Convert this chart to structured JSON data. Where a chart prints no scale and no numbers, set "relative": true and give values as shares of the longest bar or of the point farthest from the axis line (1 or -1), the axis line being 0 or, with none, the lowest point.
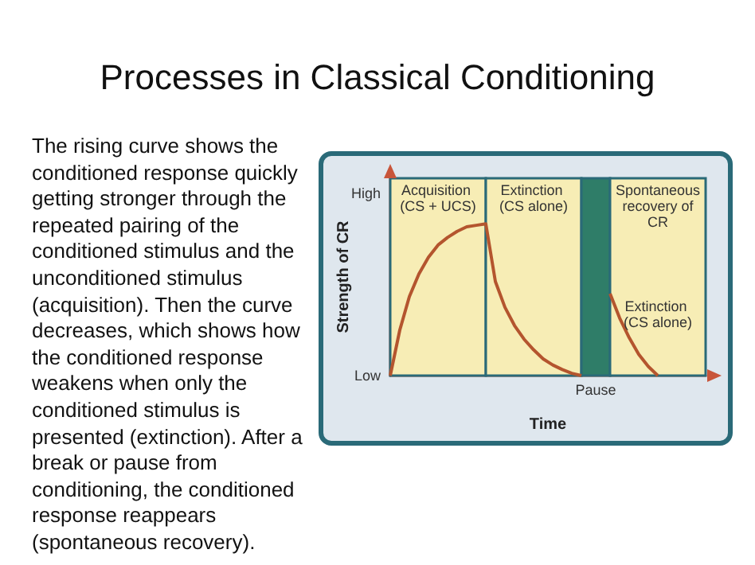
{
  "chart_data": {
    "type": "line",
    "title": "Processes in Classical Conditioning",
    "xlabel": "Time",
    "ylabel": "Strength of CR",
    "relative": true,
    "marker": "none",
    "categories": [
      null,
      null,
      null,
      null,
      null,
      null,
      null,
      null,
      null,
      null,
      null,
      null,
      null,
      null,
      null,
      null,
      null,
      null,
      null,
      null,
      null,
      null,
      null,
      null,
      null,
      null,
      null,
      null,
      null,
      null,
      null,
      null,
      null,
      null
    ],
    "series": [
      {
        "color": "#b4552e",
        "values": [
          0,
          0.3,
          0.52,
          0.67,
          0.78,
          0.86,
          0.91,
          0.95,
          0.98,
          0.99,
          1,
          0.62,
          0.45,
          0.33,
          0.24,
          0.17,
          0.11,
          0.07,
          0.04,
          0.015,
          0,
          null,
          null,
          null,
          null,
          null,
          null,
          null,
          null,
          null,
          null,
          null,
          null,
          null
        ]
      },
      {
        "color": "#b4552e",
        "values": [
          null,
          null,
          null,
          null,
          null,
          null,
          null,
          null,
          null,
          null,
          null,
          null,
          null,
          null,
          null,
          null,
          null,
          null,
          null,
          null,
          null,
          null,
          null,
          0.54,
          0.38,
          0.25,
          0.14,
          0.06,
          0,
          null,
          null,
          null,
          null,
          null
        ]
      }
    ],
    "annotations": [
      "Acquisition (CS + UCS)",
      "Extinction (CS alone)",
      "Pause",
      "Spontaneous recovery of CR",
      "High",
      "Low",
      "Extinction (CS alone)",
      "The rising curve shows the conditioned response quickly getting stronger through the repeated pairing of the conditioned stimulus and the unconditioned stimulus (acquisition). Then the curve decreases, which shows how the conditioned response weakens when only the conditioned stimulus is presented (extinction). After a break or pause from conditioning, the conditioned response reappears (spontaneous recovery)."
    ]
  }
}
